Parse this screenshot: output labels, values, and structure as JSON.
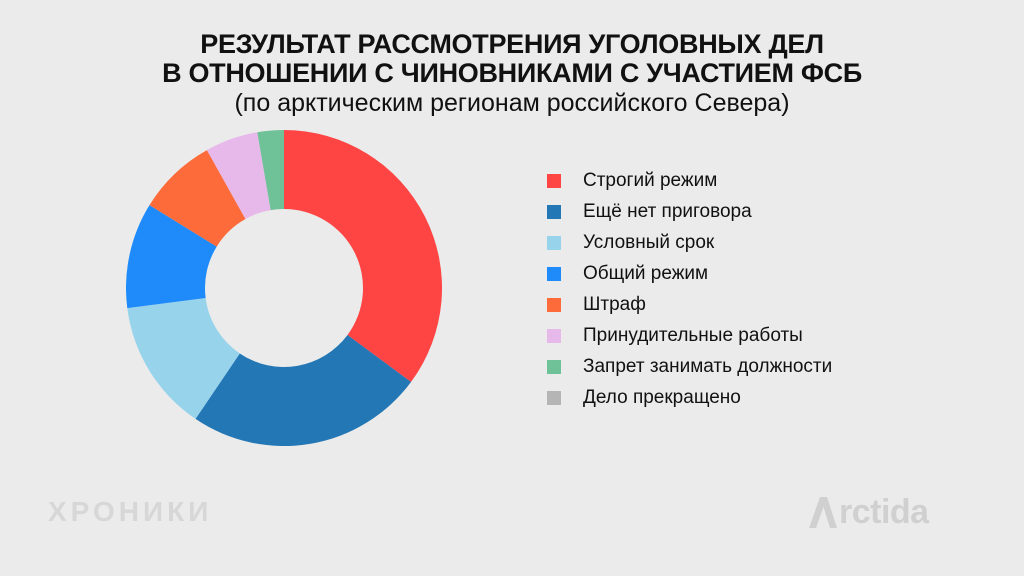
{
  "title": {
    "line1": "РЕЗУЛЬТАТ РАССМОТРЕНИЯ УГОЛОВНЫХ ДЕЛ",
    "line2": "В ОТНОШЕНИИ С ЧИНОВНИКАМИ С УЧАСТИЕМ ФСБ",
    "subtitle": "(по арктическим регионам российского Севера)"
  },
  "chart_data": {
    "type": "pie",
    "donut": true,
    "title": "РЕЗУЛЬТАТ РАССМОТРЕНИЯ УГОЛОВНЫХ ДЕЛ В ОТНОШЕНИИ С ЧИНОВНИКАМИ С УЧАСТИЕМ ФСБ",
    "subtitle": "(по арктическим регионам российского Севера)",
    "legend_position": "right",
    "categories": [
      "Строгий режим",
      "Ещё нет приговора",
      "Условный срок",
      "Общий режим",
      "Штраф",
      "Принудительные работы",
      "Запрет занимать должности",
      "Дело прекращено"
    ],
    "values": [
      35.1,
      24.3,
      13.5,
      10.8,
      8.1,
      5.4,
      2.7,
      0
    ],
    "colors": [
      "#ff4444",
      "#2377b5",
      "#98d3ec",
      "#1f8bfa",
      "#fc6b39",
      "#e7b8ea",
      "#6fc298",
      "#b5b5b5"
    ]
  },
  "logos": {
    "left": "ХРОНИКИ",
    "right": "rctida"
  }
}
